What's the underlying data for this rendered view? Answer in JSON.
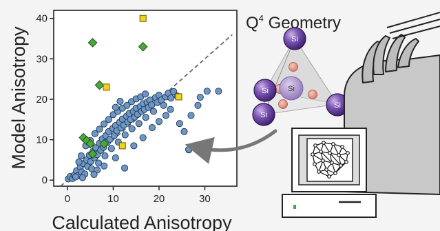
{
  "chart_data": {
    "type": "scatter",
    "title": "",
    "xlabel": "Calculated Anisotropy",
    "ylabel": "Model Anisotropy",
    "xlim": [
      -3,
      37
    ],
    "ylim": [
      -1.5,
      42
    ],
    "xticks": [
      0,
      10,
      20,
      30
    ],
    "yticks": [
      0,
      10,
      20,
      30,
      40
    ],
    "grid": false,
    "reference_line": "y = x (dashed)",
    "series": [
      {
        "marker": "circle",
        "color": "#6f97c4",
        "points": [
          [
            0.2,
            0.3
          ],
          [
            0.6,
            0.9
          ],
          [
            1.1,
            0.4
          ],
          [
            1.5,
            1.2
          ],
          [
            2.0,
            2.3
          ],
          [
            2.3,
            1.1
          ],
          [
            2.8,
            3.2
          ],
          [
            3.1,
            2.0
          ],
          [
            3.5,
            4.1
          ],
          [
            3.8,
            1.5
          ],
          [
            4.2,
            5.0
          ],
          [
            4.4,
            3.4
          ],
          [
            4.8,
            6.2
          ],
          [
            5.1,
            4.6
          ],
          [
            5.3,
            2.8
          ],
          [
            5.6,
            7.1
          ],
          [
            5.9,
            5.5
          ],
          [
            6.2,
            8.0
          ],
          [
            6.5,
            6.3
          ],
          [
            6.8,
            4.2
          ],
          [
            7.0,
            9.1
          ],
          [
            7.3,
            7.4
          ],
          [
            7.6,
            10.2
          ],
          [
            7.9,
            8.1
          ],
          [
            8.2,
            6.0
          ],
          [
            8.4,
            11.0
          ],
          [
            8.7,
            9.3
          ],
          [
            9.0,
            12.0
          ],
          [
            9.3,
            10.1
          ],
          [
            9.6,
            7.8
          ],
          [
            9.9,
            12.8
          ],
          [
            10.2,
            11.0
          ],
          [
            10.5,
            13.5
          ],
          [
            10.8,
            12.2
          ],
          [
            11.1,
            9.4
          ],
          [
            11.4,
            14.3
          ],
          [
            11.7,
            12.9
          ],
          [
            12.0,
            15.1
          ],
          [
            12.3,
            13.6
          ],
          [
            12.6,
            11.2
          ],
          [
            12.9,
            15.8
          ],
          [
            13.2,
            14.4
          ],
          [
            13.5,
            16.5
          ],
          [
            13.8,
            15.0
          ],
          [
            14.1,
            12.7
          ],
          [
            14.4,
            17.0
          ],
          [
            14.7,
            15.6
          ],
          [
            15.0,
            17.8
          ],
          [
            15.3,
            16.3
          ],
          [
            15.6,
            14.0
          ],
          [
            15.9,
            18.2
          ],
          [
            16.2,
            17.0
          ],
          [
            16.5,
            18.9
          ],
          [
            16.8,
            17.5
          ],
          [
            17.1,
            15.5
          ],
          [
            17.4,
            19.3
          ],
          [
            17.7,
            18.0
          ],
          [
            18.0,
            19.8
          ],
          [
            18.4,
            18.6
          ],
          [
            18.8,
            17.0
          ],
          [
            19.2,
            20.4
          ],
          [
            19.6,
            19.2
          ],
          [
            20.0,
            21.0
          ],
          [
            20.5,
            19.8
          ],
          [
            21.0,
            18.5
          ],
          [
            21.5,
            20.6
          ],
          [
            22.0,
            21.5
          ],
          [
            22.6,
            20.3
          ],
          [
            23.2,
            21.9
          ],
          [
            24.0,
            20.8
          ],
          [
            3.0,
            6.0
          ],
          [
            4.0,
            8.5
          ],
          [
            5.0,
            9.8
          ],
          [
            6.0,
            11.5
          ],
          [
            7.0,
            12.6
          ],
          [
            8.0,
            13.9
          ],
          [
            9.0,
            15.0
          ],
          [
            10.0,
            16.2
          ],
          [
            11.0,
            17.0
          ],
          [
            12.0,
            17.8
          ],
          [
            13.0,
            18.5
          ],
          [
            14.0,
            19.4
          ],
          [
            15.0,
            20.1
          ],
          [
            16.0,
            20.6
          ],
          [
            17.0,
            21.3
          ],
          [
            6.5,
            2.5
          ],
          [
            8.0,
            3.5
          ],
          [
            10.5,
            5.5
          ],
          [
            12.5,
            3.0
          ],
          [
            14.5,
            8.5
          ],
          [
            16.5,
            10.5
          ],
          [
            18.5,
            13.0
          ],
          [
            20.0,
            14.5
          ],
          [
            21.5,
            16.0
          ],
          [
            2.5,
            4.5
          ],
          [
            1.8,
            0.8
          ],
          [
            3.3,
            0.6
          ],
          [
            5.8,
            1.4
          ],
          [
            26.5,
            7.5
          ],
          [
            25.5,
            12.0
          ],
          [
            27.0,
            16.0
          ],
          [
            28.5,
            18.5
          ],
          [
            29.0,
            20.5
          ],
          [
            30.5,
            22.0
          ],
          [
            33.0,
            22.0
          ],
          [
            26.5,
            7.6
          ],
          [
            24.5,
            14.0
          ],
          [
            22.5,
            17.5
          ],
          [
            11.5,
            19.5
          ],
          [
            10.5,
            18.0
          ]
        ]
      },
      {
        "marker": "diamond",
        "color": "#4aa83a",
        "points": [
          [
            5.5,
            34
          ],
          [
            16.5,
            33
          ],
          [
            7.0,
            23.5
          ],
          [
            3.5,
            10.5
          ],
          [
            4.2,
            9.8
          ],
          [
            5.0,
            9.0
          ],
          [
            5.5,
            6.5
          ],
          [
            8.0,
            9.0
          ]
        ]
      },
      {
        "marker": "square",
        "color": "#f2d21a",
        "points": [
          [
            16.5,
            40
          ],
          [
            8.5,
            23
          ],
          [
            24.3,
            20.6
          ],
          [
            12.0,
            8.5
          ]
        ]
      }
    ]
  },
  "illustration": {
    "geometry_label_prefix": "Q",
    "geometry_label_sup": "4",
    "geometry_label_rest": " Geometry",
    "atom_label": "Si",
    "monitor_icon": "neural-network-icon"
  }
}
